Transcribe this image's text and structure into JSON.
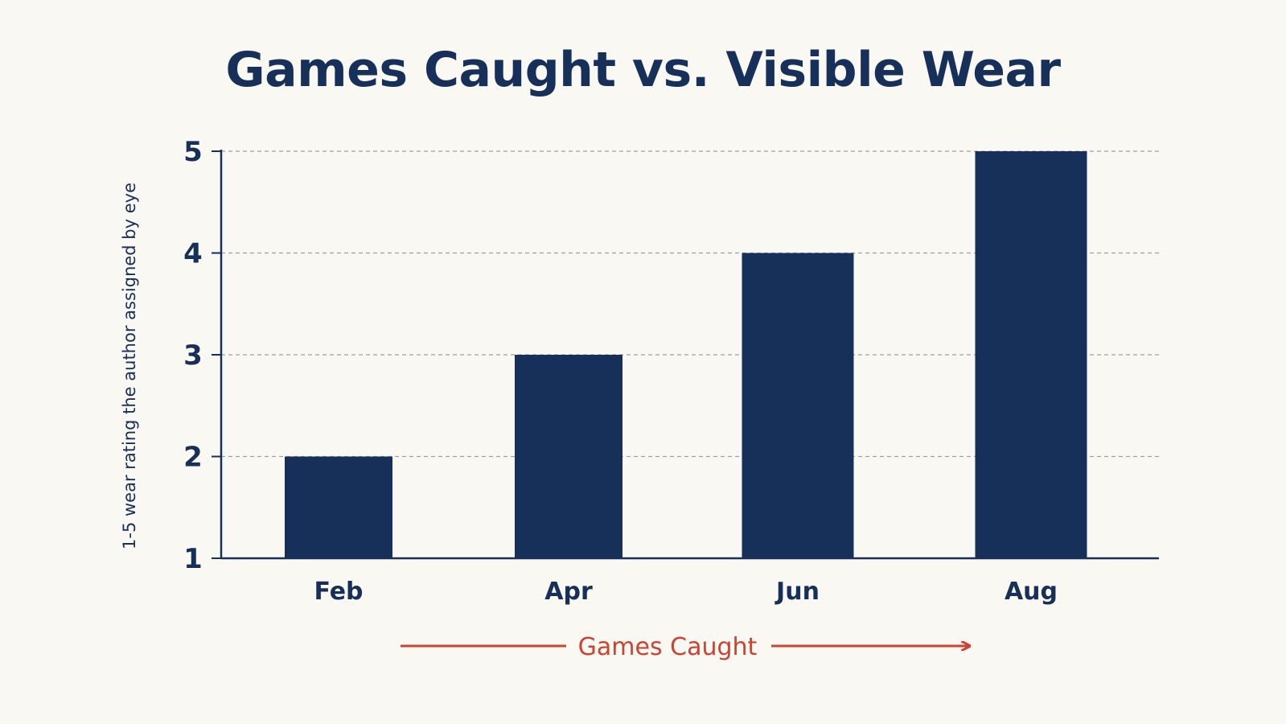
{
  "chart_data": {
    "type": "bar",
    "title": "Games Caught vs. Visible Wear",
    "categories": [
      "Feb",
      "Apr",
      "Jun",
      "Aug"
    ],
    "values": [
      2,
      3,
      4,
      5
    ],
    "ylabel": "1-5 wear rating the author assigned by eye",
    "xlabel": "Games Caught",
    "ylim": [
      1,
      5
    ],
    "yticks": [
      1,
      2,
      3,
      4,
      5
    ],
    "grid": "horizontal dashed",
    "legend": "none",
    "x_axis_arrow": true
  },
  "colors": {
    "background": "#faf8f3",
    "bar": "#17305a",
    "text": "#17305a",
    "axis": "#17305a",
    "grid": "#9aa0a8",
    "xlabel_accent": "#cc4430"
  }
}
